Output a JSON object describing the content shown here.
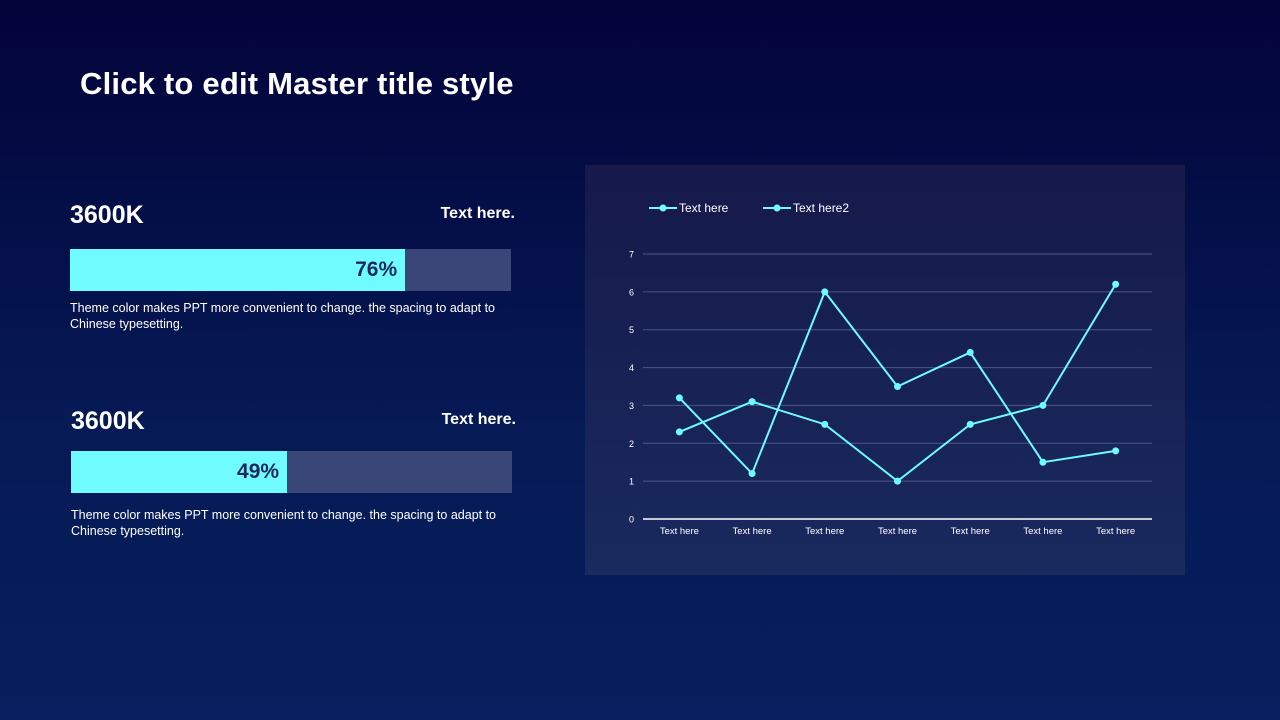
{
  "slide": {
    "title": "Click to edit Master title style"
  },
  "kpis": [
    {
      "value": "3600K",
      "label": "Text here.",
      "percent": 76,
      "percent_label": "76%",
      "description": "Theme color makes PPT more convenient  to change. the spacing to adapt to Chinese  typesetting."
    },
    {
      "value": "3600K",
      "label": "Text here.",
      "percent": 49,
      "percent_label": "49%",
      "description": "Theme color makes PPT more convenient  to change. the spacing to adapt to Chinese  typesetting."
    }
  ],
  "colors": {
    "accent": "#6ffbff",
    "bar_track": "#3a4678",
    "gridline": "#4a5688"
  },
  "chart_data": {
    "type": "line",
    "categories": [
      "Text here",
      "Text here",
      "Text here",
      "Text here",
      "Text here",
      "Text here",
      "Text here"
    ],
    "series": [
      {
        "name": "Text here",
        "values": [
          3.2,
          1.2,
          6.0,
          3.5,
          4.4,
          1.5,
          1.8
        ]
      },
      {
        "name": "Text here2",
        "values": [
          2.3,
          3.1,
          2.5,
          1.0,
          2.5,
          3.0,
          6.2
        ]
      }
    ],
    "ylim": [
      0,
      7
    ],
    "yticks": [
      0,
      1,
      2,
      3,
      4,
      5,
      6,
      7
    ],
    "grid": true,
    "legend": "top-left"
  }
}
